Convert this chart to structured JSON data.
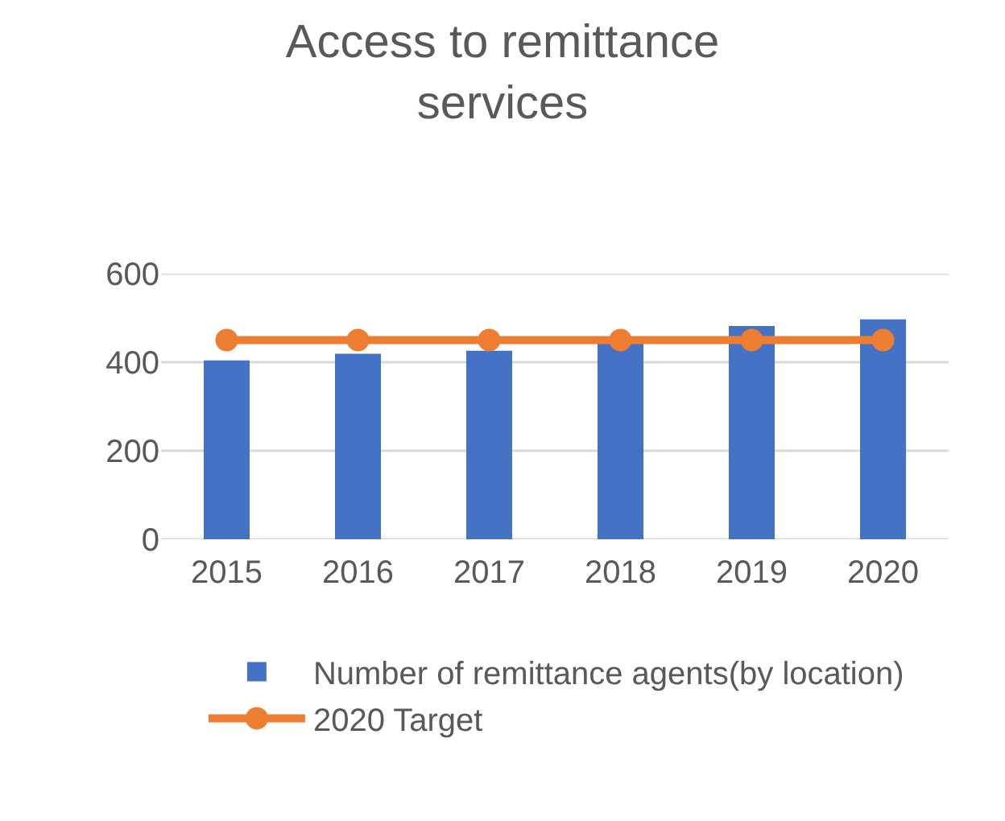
{
  "chart_data": {
    "type": "bar",
    "title": "Access to remittance services",
    "categories": [
      "2015",
      "2016",
      "2017",
      "2018",
      "2019",
      "2020"
    ],
    "series": [
      {
        "name": "Number of remittance agents(by location)",
        "color": "#4472c4",
        "values": [
          404,
          419,
          426,
          445,
          482,
          497
        ]
      },
      {
        "name": "2020 Target",
        "type": "line",
        "color": "#ed7d31",
        "values": [
          450,
          450,
          450,
          450,
          450,
          450
        ],
        "marker": "circle",
        "line_style": "solid"
      }
    ],
    "ylim": [
      0,
      600
    ],
    "yticks": [
      0,
      200,
      400,
      600
    ],
    "grid": "y",
    "legend": "bottom"
  }
}
